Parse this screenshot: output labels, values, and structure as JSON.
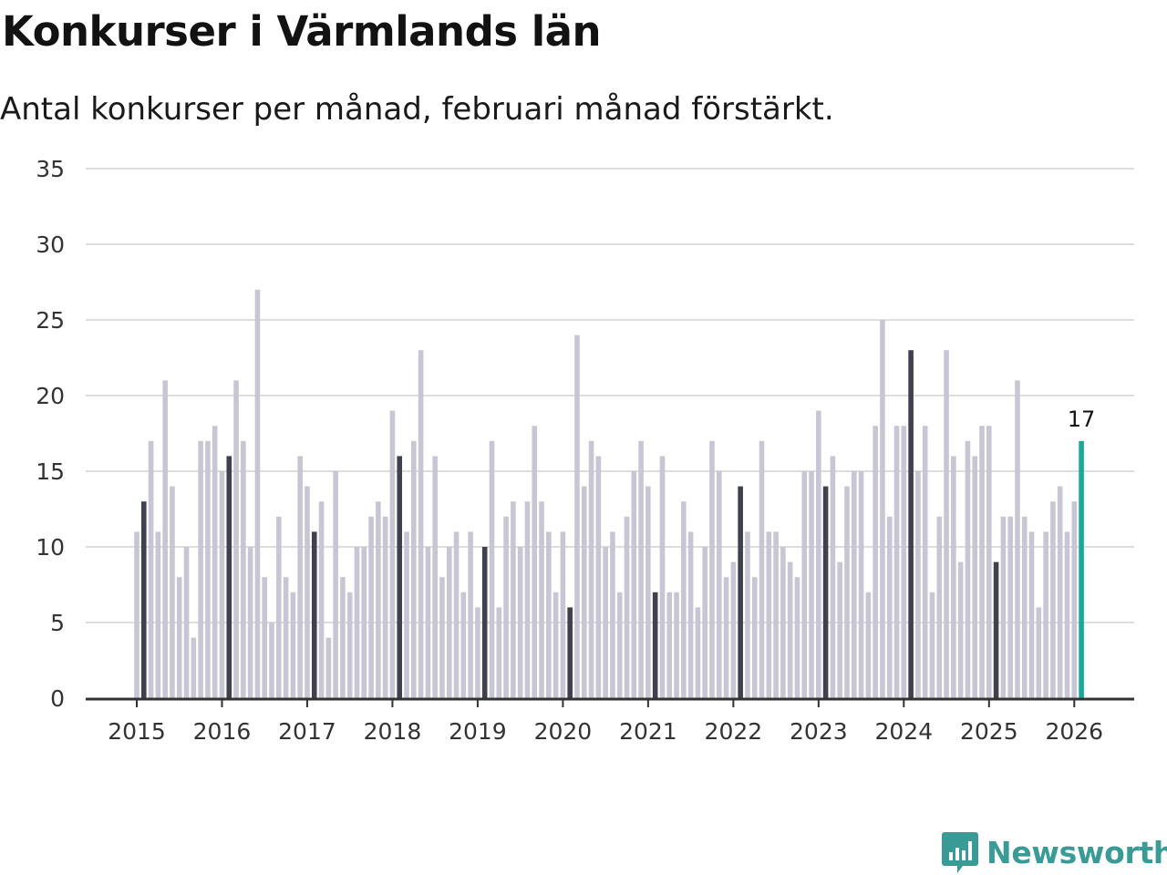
{
  "header": {
    "title": "Konkurser i Värmlands län",
    "subtitle": "Antal konkurser per månad, februari månad förstärkt."
  },
  "brand": {
    "name": "Newsworthy",
    "color": "#3a9a96"
  },
  "colors": {
    "normal": "#c8c6d4",
    "february": "#41404f",
    "latest": "#1aa898",
    "grid": "#dddddd",
    "axis": "#333333"
  },
  "chart_data": {
    "type": "bar",
    "title": "Konkurser i Värmlands län",
    "subtitle": "Antal konkurser per månad, februari månad förstärkt.",
    "xlabel": "",
    "ylabel": "",
    "ylim": [
      0,
      35
    ],
    "yticks": [
      0,
      5,
      10,
      15,
      20,
      25,
      30,
      35
    ],
    "grid": true,
    "start": "2015-01",
    "highlight": "february",
    "xticks": [
      "2015",
      "2016",
      "2017",
      "2018",
      "2019",
      "2020",
      "2021",
      "2022",
      "2023",
      "2024",
      "2025",
      "2026"
    ],
    "values": [
      11,
      13,
      17,
      11,
      21,
      14,
      8,
      10,
      4,
      17,
      17,
      18,
      15,
      16,
      21,
      17,
      10,
      27,
      8,
      5,
      12,
      8,
      7,
      16,
      14,
      11,
      13,
      4,
      15,
      8,
      7,
      10,
      10,
      12,
      13,
      12,
      19,
      16,
      11,
      17,
      23,
      10,
      16,
      8,
      10,
      11,
      7,
      11,
      6,
      10,
      17,
      6,
      12,
      13,
      10,
      13,
      18,
      13,
      11,
      7,
      11,
      6,
      24,
      14,
      17,
      16,
      10,
      11,
      7,
      12,
      15,
      17,
      14,
      7,
      16,
      7,
      7,
      13,
      11,
      6,
      10,
      17,
      15,
      8,
      9,
      14,
      11,
      8,
      17,
      11,
      11,
      10,
      9,
      8,
      15,
      15,
      19,
      14,
      16,
      9,
      14,
      15,
      15,
      7,
      18,
      25,
      12,
      18,
      18,
      23,
      15,
      18,
      7,
      12,
      23,
      16,
      9,
      17,
      16,
      18,
      18,
      9,
      12,
      12,
      21,
      12,
      11,
      6,
      11,
      13,
      14,
      11,
      13,
      17
    ],
    "last_label": "17"
  }
}
